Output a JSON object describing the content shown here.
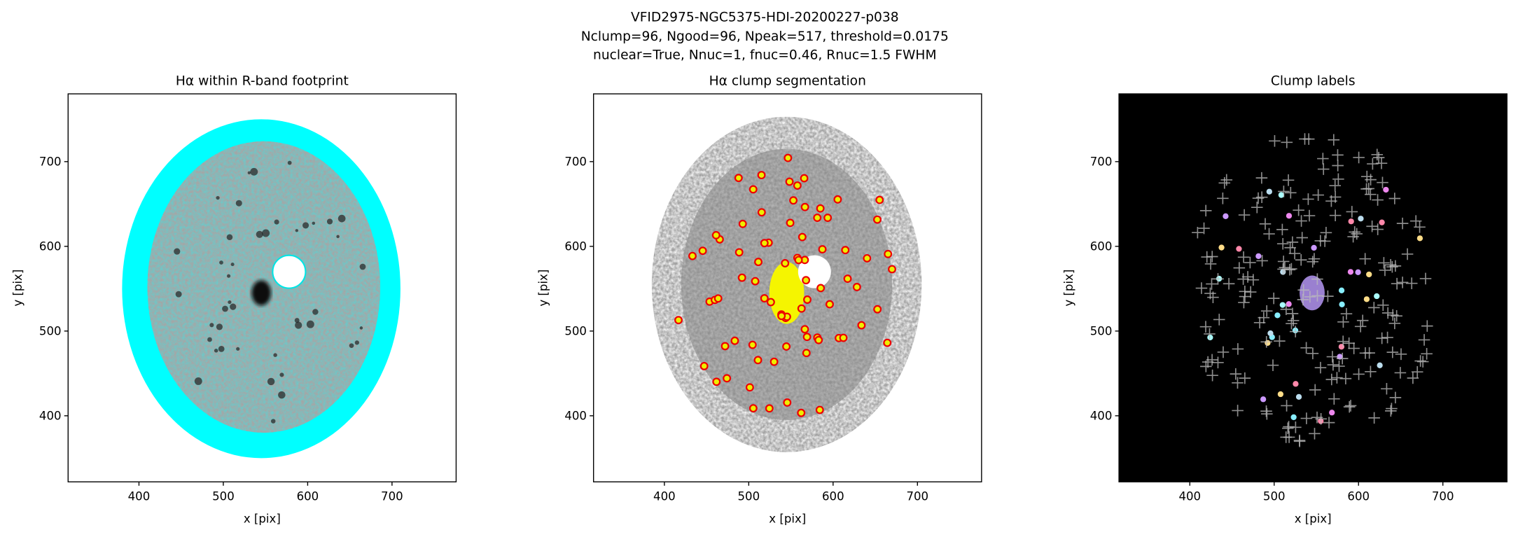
{
  "suptitle": [
    "VFID2975-NGC5375-HDI-20200227-p038",
    "Nclump=96, Ngood=96, Npeak=517, threshold=0.0175",
    "nuclear=True, Nnuc=1, fnuc=0.46, Rnuc=1.5 FWHM"
  ],
  "chart_data": [
    {
      "type": "image",
      "title": "Hα within R-band footprint",
      "xlabel": "x [pix]",
      "ylabel": "y [pix]",
      "xlim": [
        316,
        776
      ],
      "ylim": [
        322,
        780
      ],
      "xticks": [
        400,
        500,
        600,
        700
      ],
      "yticks": [
        400,
        500,
        600,
        700
      ]
    },
    {
      "type": "image",
      "title": "Hα clump segmentation",
      "xlabel": "x [pix]",
      "ylabel": "y [pix]",
      "xlim": [
        316,
        776
      ],
      "ylim": [
        322,
        780
      ],
      "xticks": [
        400,
        500,
        600,
        700
      ],
      "yticks": [
        400,
        500,
        600,
        700
      ]
    },
    {
      "type": "image",
      "title": "Clump labels",
      "xlabel": "x [pix]",
      "ylabel": "y [pix]",
      "xlim": [
        316,
        776
      ],
      "ylim": [
        322,
        780
      ],
      "xticks": [
        400,
        500,
        600,
        700
      ],
      "yticks": [
        400,
        500,
        600,
        700
      ]
    }
  ]
}
